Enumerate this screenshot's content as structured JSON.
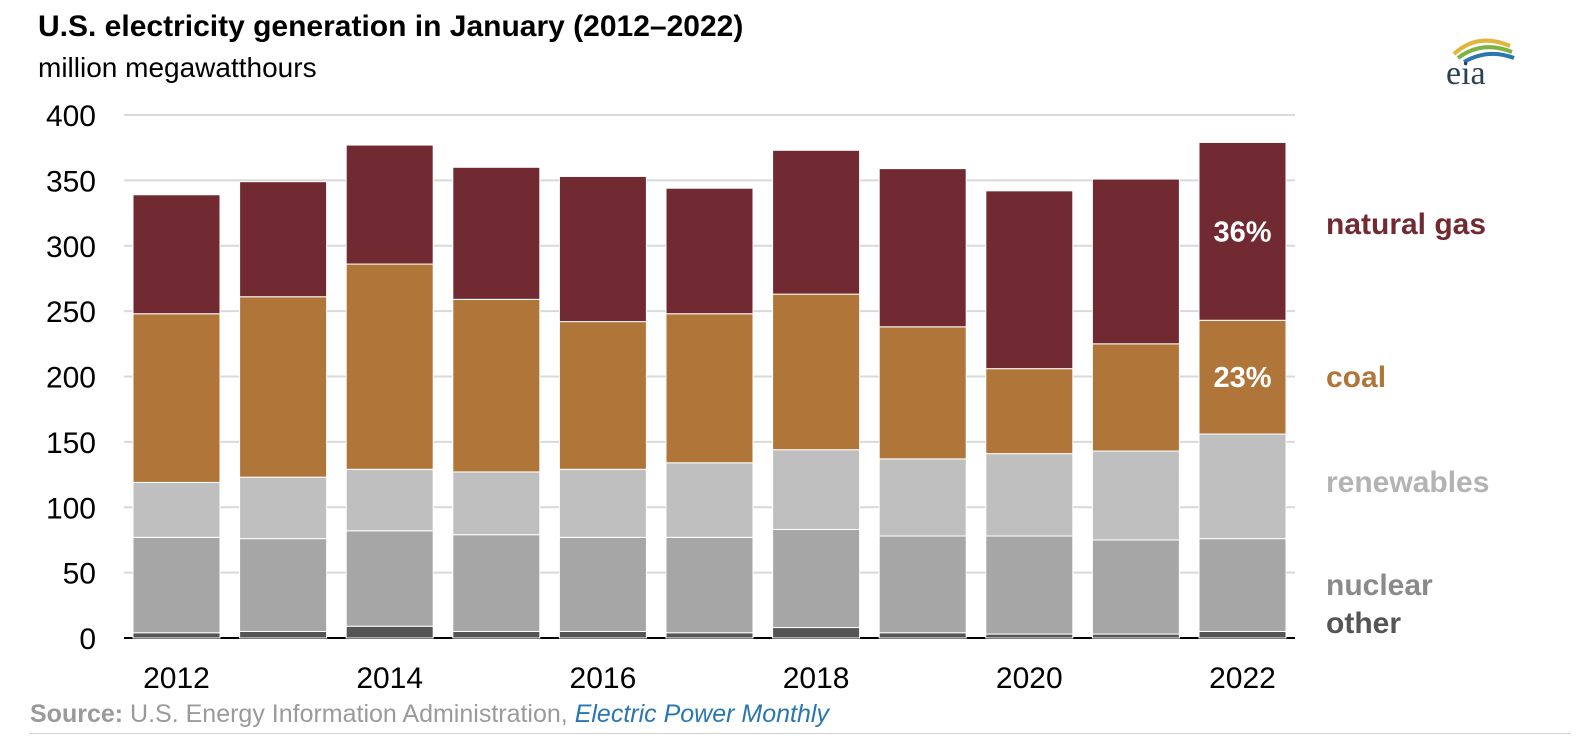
{
  "title": "U.S. electricity generation in January (2012–2022)",
  "subtitle": "million megawatthours",
  "logo_text": "eia",
  "source": {
    "label": "Source:",
    "text": "U.S. Energy Information Administration,",
    "link": "Electric Power Monthly"
  },
  "chart_data": {
    "type": "bar",
    "stacked": true,
    "title": "U.S. electricity generation in January (2012–2022)",
    "ylabel": "million megawatthours",
    "xlabel": "",
    "ylim": [
      0,
      400
    ],
    "yticks": [
      0,
      50,
      100,
      150,
      200,
      250,
      300,
      350,
      400
    ],
    "grid": true,
    "legend_position": "right (direct labels)",
    "categories": [
      "2012",
      "2013",
      "2014",
      "2015",
      "2016",
      "2017",
      "2018",
      "2019",
      "2020",
      "2021",
      "2022"
    ],
    "xtick_labels": [
      "2012",
      "",
      "2014",
      "",
      "2016",
      "",
      "2018",
      "",
      "2020",
      "",
      "2022"
    ],
    "series": [
      {
        "name": "other",
        "color": "#555555",
        "values": [
          4,
          5,
          9,
          5,
          5,
          4,
          8,
          4,
          3,
          3,
          5
        ]
      },
      {
        "name": "nuclear",
        "color": "#a6a6a6",
        "values": [
          73,
          71,
          73,
          74,
          72,
          73,
          75,
          74,
          75,
          72,
          71
        ]
      },
      {
        "name": "renewables",
        "color": "#bfbfbf",
        "values": [
          42,
          47,
          47,
          48,
          52,
          57,
          61,
          59,
          63,
          68,
          80
        ]
      },
      {
        "name": "coal",
        "color": "#b07639",
        "values": [
          129,
          138,
          157,
          132,
          113,
          114,
          119,
          101,
          65,
          82,
          87
        ]
      },
      {
        "name": "natural gas",
        "color": "#722a32",
        "values": [
          91,
          88,
          91,
          101,
          111,
          96,
          110,
          121,
          136,
          126,
          136
        ]
      }
    ],
    "annotations": [
      {
        "category": "2022",
        "series": "natural gas",
        "text": "36%"
      },
      {
        "category": "2022",
        "series": "coal",
        "text": "23%"
      }
    ],
    "legend_labels": [
      {
        "text": "natural gas",
        "color": "#722a32"
      },
      {
        "text": "coal",
        "color": "#b07639"
      },
      {
        "text": "renewables",
        "color": "#b3b3b3"
      },
      {
        "text": "nuclear",
        "color": "#8a8a8a"
      },
      {
        "text": "other",
        "color": "#555555"
      }
    ]
  }
}
